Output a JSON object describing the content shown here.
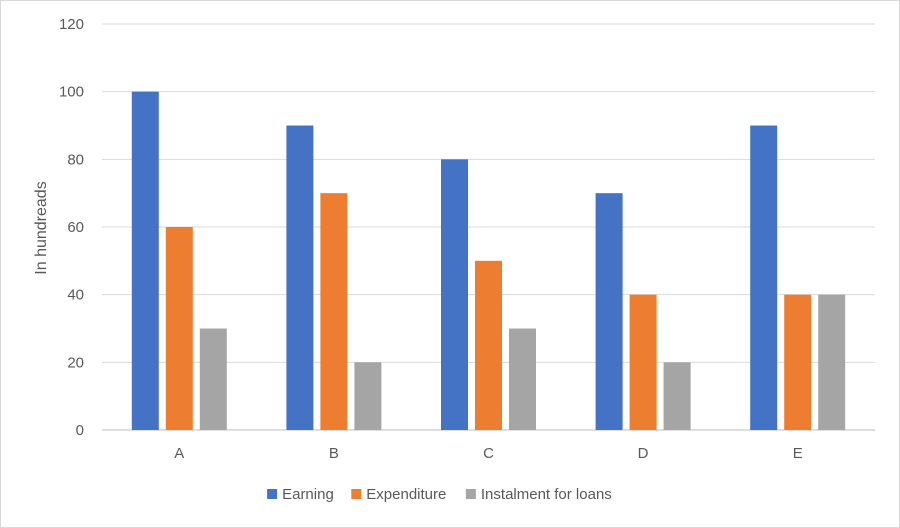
{
  "chart_data": {
    "type": "bar",
    "title": "",
    "xlabel": "",
    "ylabel": "In hundreads",
    "categories": [
      "A",
      "B",
      "C",
      "D",
      "E"
    ],
    "series": [
      {
        "name": "Earning",
        "color": "#4472C4",
        "values": [
          100,
          90,
          80,
          70,
          90
        ]
      },
      {
        "name": "Expenditure",
        "color": "#ED7D31",
        "values": [
          60,
          70,
          50,
          40,
          40
        ]
      },
      {
        "name": "Instalment for loans",
        "color": "#A5A5A5",
        "values": [
          30,
          20,
          30,
          20,
          40
        ]
      }
    ],
    "ylim": [
      0,
      120
    ],
    "yticks": [
      0,
      20,
      40,
      60,
      80,
      100,
      120
    ],
    "grid": true,
    "legend_position": "bottom"
  }
}
